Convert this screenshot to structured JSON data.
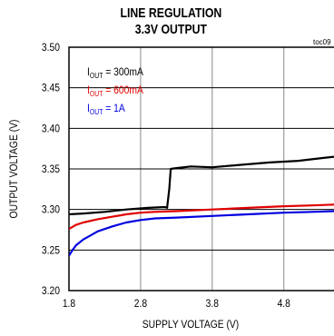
{
  "title_line1": "LINE REGULATION",
  "title_line2": "3.3V OUTPUT",
  "toc_label": "toc09",
  "chart_data": {
    "type": "line",
    "title": "LINE REGULATION 3.3V OUTPUT",
    "xlabel": "SUPPLY VOLTAGE (V)",
    "ylabel": "OUTPUT VOLTAGE (V)",
    "xlim": [
      1.8,
      5.5
    ],
    "ylim": [
      3.2,
      3.5
    ],
    "x_ticks": [
      "1.8",
      "2.8",
      "3.8",
      "4.8"
    ],
    "y_ticks": [
      "3.20",
      "3.25",
      "3.30",
      "3.35",
      "3.40",
      "3.45",
      "3.50"
    ],
    "grid": true,
    "legend_position": "top-left",
    "series": [
      {
        "name_prefix": "I",
        "name_sub": "OUT",
        "name_suffix": " = 300mA",
        "color": "#000000",
        "x": [
          1.8,
          2.0,
          2.3,
          2.6,
          2.9,
          3.14,
          3.17,
          3.2,
          3.22,
          3.3,
          3.5,
          3.8,
          4.2,
          4.6,
          5.0,
          5.3,
          5.5
        ],
        "y": [
          3.294,
          3.295,
          3.297,
          3.3,
          3.302,
          3.303,
          3.302,
          3.325,
          3.35,
          3.351,
          3.353,
          3.352,
          3.355,
          3.358,
          3.36,
          3.363,
          3.365
        ]
      },
      {
        "name_prefix": "I",
        "name_sub": "OUT",
        "name_suffix": " = 600mA",
        "color": "#e00000",
        "x": [
          1.8,
          1.9,
          2.0,
          2.2,
          2.4,
          2.6,
          2.8,
          3.0,
          3.3,
          3.8,
          4.3,
          4.8,
          5.2,
          5.5
        ],
        "y": [
          3.276,
          3.281,
          3.284,
          3.288,
          3.291,
          3.294,
          3.296,
          3.297,
          3.298,
          3.3,
          3.302,
          3.304,
          3.305,
          3.306
        ]
      },
      {
        "name_prefix": "I",
        "name_sub": "OUT",
        "name_suffix": " = 1A",
        "color": "#0000e0",
        "x": [
          1.8,
          1.85,
          1.9,
          2.0,
          2.1,
          2.2,
          2.4,
          2.6,
          2.8,
          3.0,
          3.3,
          3.8,
          4.3,
          4.8,
          5.2,
          5.5
        ],
        "y": [
          3.243,
          3.25,
          3.256,
          3.263,
          3.268,
          3.273,
          3.279,
          3.284,
          3.287,
          3.289,
          3.29,
          3.292,
          3.294,
          3.296,
          3.297,
          3.298
        ]
      }
    ]
  }
}
